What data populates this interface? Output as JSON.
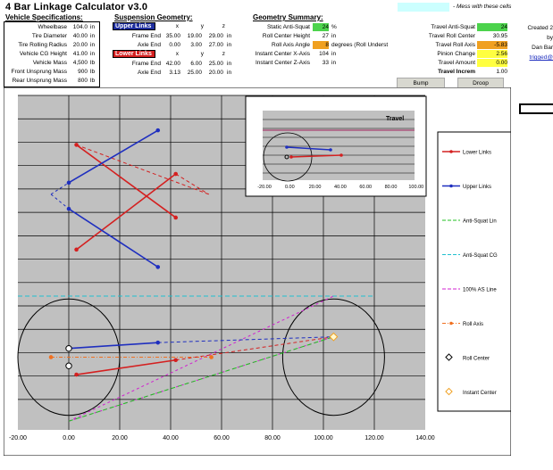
{
  "title": "4 Bar Linkage Calculator v3.0",
  "note": "- Mess with these cells",
  "vehicle": {
    "heading": "Vehicle Specifications:",
    "rows": [
      {
        "label": "Wheelbase",
        "value": "104.0",
        "unit": "in"
      },
      {
        "label": "Tire Diameter",
        "value": "40.00",
        "unit": "in"
      },
      {
        "label": "Tire Rolling Radius",
        "value": "20.00",
        "unit": "in"
      },
      {
        "label": "Vehicle CG Height",
        "value": "41.00",
        "unit": "in"
      },
      {
        "label": "Vehicle Mass",
        "value": "4,500",
        "unit": "lb"
      },
      {
        "label": "Front Unsprung Mass",
        "value": "900",
        "unit": "lb"
      },
      {
        "label": "Rear Unsprung Mass",
        "value": "800",
        "unit": "lb"
      }
    ]
  },
  "suspension": {
    "heading": "Suspension Geometry:",
    "axes": [
      "x",
      "y",
      "z"
    ],
    "upper": {
      "title": "Upper Links",
      "frame": {
        "label": "Frame End",
        "x": "35.00",
        "y": "19.00",
        "z": "29.00",
        "unit": "in"
      },
      "axle": {
        "label": "Axle End",
        "x": "0.00",
        "y": "3.00",
        "z": "27.00",
        "unit": "in"
      }
    },
    "lower": {
      "title": "Lower Links",
      "frame": {
        "label": "Frame End",
        "x": "42.00",
        "y": "6.00",
        "z": "25.00",
        "unit": "in"
      },
      "axle": {
        "label": "Axle End",
        "x": "3.13",
        "y": "25.00",
        "z": "20.00",
        "unit": "in"
      }
    }
  },
  "summary": {
    "heading": "Geometry Summary:",
    "left": [
      {
        "label": "Static Anti-Squat",
        "value": "24",
        "unit": "%",
        "color": "#4cd34c"
      },
      {
        "label": "Roll Center Height",
        "value": "27",
        "unit": "in",
        "color": ""
      },
      {
        "label": "Roll Axis Angle",
        "value": "8",
        "unit": "degrees (Roll Underst",
        "color": "#f0a020"
      },
      {
        "label": "Instant Center X-Axis",
        "value": "104",
        "unit": "in",
        "color": ""
      },
      {
        "label": "Instant Center Z-Axis",
        "value": "33",
        "unit": "in",
        "color": ""
      }
    ],
    "right": [
      {
        "label": "Travel Anti-Squat",
        "value": "24",
        "color": "#4cd34c"
      },
      {
        "label": "Travel Roll Center",
        "value": "30.95",
        "color": ""
      },
      {
        "label": "Travel Roll Axis",
        "value": "-5.83",
        "color": "#f0a020"
      },
      {
        "label": "Pinion Change",
        "value": "2.56",
        "color": "#ffff40"
      },
      {
        "label": "Travel Amount",
        "value": "0.00",
        "color": "#ffff40"
      },
      {
        "label": "Travel Increm",
        "value": "1.00",
        "color": ""
      }
    ],
    "edge": [
      "Created 2",
      "by",
      "Dan Bar",
      "trigged@"
    ]
  },
  "buttons": {
    "bump": "Bump",
    "droop": "Droop"
  },
  "mini_chart": {
    "title": "Travel",
    "x_ticks": [
      "-20.00",
      "0.00",
      "20.00",
      "40.00",
      "60.00",
      "80.00",
      "100.00"
    ]
  },
  "legend": [
    {
      "name": "Lower Links",
      "color": "#d42020",
      "style": "line-dot"
    },
    {
      "name": "Upper Links",
      "color": "#1f2fbf",
      "style": "line-dot"
    },
    {
      "name": "Anti-Squat Lin",
      "color": "#20c020",
      "style": "dash"
    },
    {
      "name": "Anti-Squat CG",
      "color": "#20c0d0",
      "style": "dash"
    },
    {
      "name": "100% AS Line",
      "color": "#d020d0",
      "style": "dash"
    },
    {
      "name": "Roll Axis",
      "color": "#f07020",
      "style": "dash-dot"
    },
    {
      "name": "Roll Center",
      "color": "#000000",
      "style": "diamond"
    },
    {
      "name": "Instant Center",
      "color": "#f0a020",
      "style": "diamond"
    }
  ],
  "chart_data": {
    "type": "scatter",
    "x_ticks": [
      "-20.00",
      "0.00",
      "20.00",
      "40.00",
      "60.00",
      "80.00",
      "100.00",
      "120.00",
      "140.00"
    ],
    "xlim": [
      -20,
      140
    ],
    "ylim": [
      -5,
      110
    ],
    "grid": true,
    "series": [
      {
        "name": "Lower Links",
        "color": "#d42020",
        "top": [
          [
            3,
            93
          ],
          [
            42,
            68
          ]
        ],
        "topfar": [
          [
            42,
            68
          ],
          [
            55,
            76
          ],
          [
            42,
            68
          ]
        ],
        "bottom": [
          [
            3,
            57
          ],
          [
            42,
            83
          ]
        ],
        "side": [
          [
            3,
            14
          ],
          [
            42,
            19
          ]
        ]
      },
      {
        "name": "Upper Links",
        "color": "#1f2fbf",
        "top": [
          [
            0,
            80
          ],
          [
            35,
            98
          ]
        ],
        "bottom": [
          [
            0,
            71
          ],
          [
            35,
            51
          ]
        ],
        "left": [
          [
            -7,
            76
          ],
          [
            0,
            80
          ],
          [
            -7,
            76
          ],
          [
            0,
            71
          ]
        ],
        "side": [
          [
            0,
            23
          ],
          [
            35,
            25
          ]
        ]
      }
    ],
    "wheels": [
      {
        "x": 0,
        "y": 20,
        "r": 20
      },
      {
        "x": 104,
        "y": 20,
        "r": 20
      }
    ],
    "roll_center": [
      [
        0,
        23
      ],
      [
        0,
        17
      ]
    ],
    "instant_center": [
      104,
      27
    ],
    "anti_squat_cg_y": 41
  }
}
